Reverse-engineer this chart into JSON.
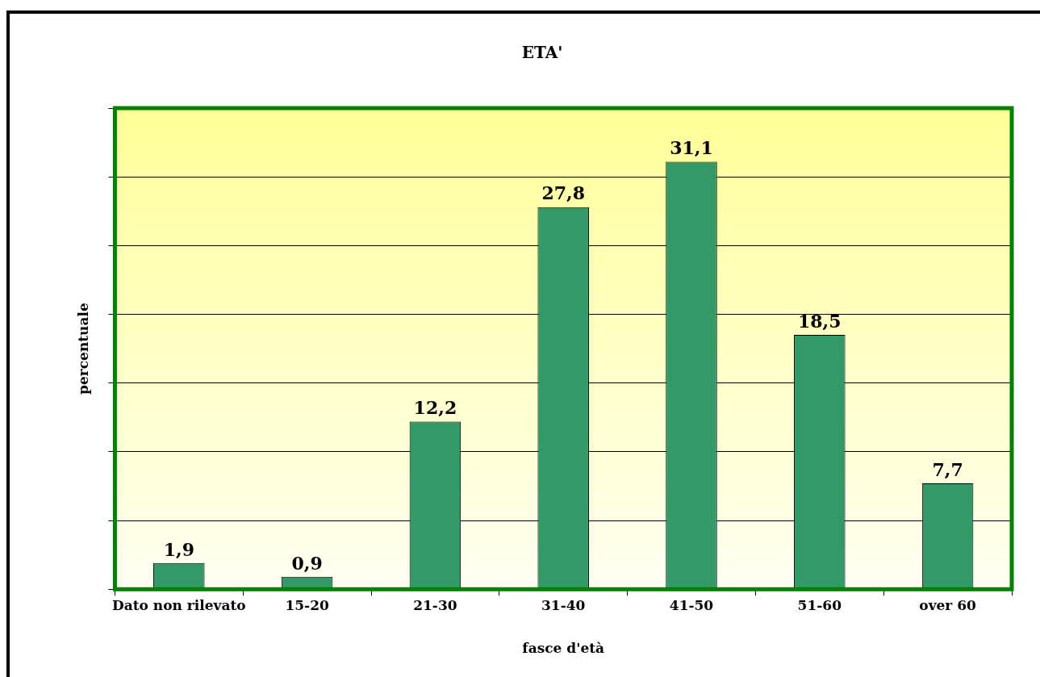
{
  "chart_data": {
    "type": "bar",
    "title": "ETA'",
    "xlabel": "fasce d'età",
    "ylabel": "percentuale",
    "categories": [
      "Dato non rilevato",
      "15-20",
      "21-30",
      "31-40",
      "41-50",
      "51-60",
      "over 60"
    ],
    "values": [
      1.9,
      0.9,
      12.2,
      27.8,
      31.1,
      18.5,
      7.7
    ],
    "value_labels": [
      "1,9",
      "0,9",
      "12,2",
      "27,8",
      "31,1",
      "18,5",
      "7,7"
    ],
    "color": "#339966",
    "ylim": [
      0,
      35
    ],
    "yticks": [
      {
        "value": 0,
        "label": null
      },
      {
        "value": 5,
        "label": null
      },
      {
        "value": 10,
        "label": null
      },
      {
        "value": 15,
        "label": null
      },
      {
        "value": 20,
        "label": null
      },
      {
        "value": 25,
        "label": null
      },
      {
        "value": 30,
        "label": null
      },
      {
        "value": 35,
        "label": null
      }
    ],
    "tick_labels": "x",
    "grid": "y",
    "legend": false
  }
}
